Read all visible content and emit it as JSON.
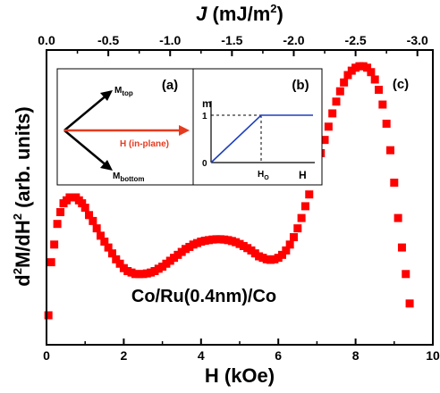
{
  "chart_data": {
    "type": "scatter",
    "ylabel_main": "d",
    "ylabel_sup1": "2",
    "ylabel_mid": "M/dH",
    "ylabel_sup2": "2",
    "ylabel_tail": " (arb. units)",
    "xlabel": "H (kOe)",
    "top_xlabel_var": "J",
    "top_xlabel_unit": " (mJ/m",
    "top_xlabel_sup": "2",
    "top_xlabel_close": ")",
    "xlim": [
      0,
      10
    ],
    "x_ticks": [
      "0",
      "2",
      "4",
      "6",
      "8",
      "10"
    ],
    "top_ticks": [
      "0.0",
      "-0.5",
      "-1.0",
      "-1.5",
      "-2.0",
      "-2.5",
      "-3.0"
    ],
    "top_tick_H": [
      0,
      1.6,
      3.2,
      4.8,
      6.4,
      8.0,
      9.6
    ],
    "ylim": [
      0,
      1
    ],
    "annotation": "Co/Ru(0.4nm)/Co",
    "marker_color": "#ff0000",
    "series": [
      {
        "x": [
          0.05,
          0.12,
          0.2,
          0.28,
          0.36,
          0.44,
          0.52,
          0.6,
          0.68,
          0.76,
          0.84,
          0.92,
          1.0,
          1.1,
          1.2,
          1.3,
          1.4,
          1.5,
          1.6,
          1.7,
          1.8,
          1.9,
          2.0,
          2.1,
          2.2,
          2.3,
          2.4,
          2.5,
          2.6,
          2.7,
          2.8,
          2.9,
          3.0,
          3.1,
          3.2,
          3.3,
          3.4,
          3.5,
          3.6,
          3.7,
          3.8,
          3.9,
          4.0,
          4.1,
          4.2,
          4.3,
          4.4,
          4.5,
          4.6,
          4.7,
          4.8,
          4.9,
          5.0,
          5.1,
          5.2,
          5.3,
          5.4,
          5.5,
          5.6,
          5.7,
          5.8,
          5.9,
          6.0,
          6.1,
          6.2,
          6.3,
          6.4,
          6.5,
          6.6,
          6.7,
          6.8,
          6.9,
          7.0,
          7.1,
          7.2,
          7.3,
          7.4,
          7.5,
          7.6,
          7.7,
          7.8,
          7.9,
          8.0,
          8.1,
          8.2,
          8.3,
          8.4,
          8.5,
          8.6,
          8.7,
          8.8,
          8.9,
          9.0,
          9.1,
          9.2,
          9.3,
          9.4
        ],
        "y": [
          0.1,
          0.28,
          0.34,
          0.41,
          0.45,
          0.48,
          0.49,
          0.5,
          0.5,
          0.5,
          0.49,
          0.48,
          0.465,
          0.44,
          0.42,
          0.395,
          0.37,
          0.35,
          0.33,
          0.31,
          0.29,
          0.275,
          0.26,
          0.25,
          0.245,
          0.24,
          0.24,
          0.24,
          0.242,
          0.245,
          0.25,
          0.258,
          0.265,
          0.275,
          0.285,
          0.295,
          0.305,
          0.315,
          0.325,
          0.332,
          0.34,
          0.345,
          0.35,
          0.353,
          0.355,
          0.357,
          0.358,
          0.358,
          0.357,
          0.355,
          0.352,
          0.348,
          0.342,
          0.335,
          0.328,
          0.32,
          0.31,
          0.3,
          0.295,
          0.29,
          0.288,
          0.29,
          0.295,
          0.305,
          0.32,
          0.34,
          0.365,
          0.395,
          0.43,
          0.47,
          0.51,
          0.555,
          0.6,
          0.65,
          0.695,
          0.74,
          0.785,
          0.825,
          0.86,
          0.89,
          0.915,
          0.93,
          0.94,
          0.945,
          0.945,
          0.94,
          0.925,
          0.9,
          0.865,
          0.815,
          0.75,
          0.66,
          0.55,
          0.43,
          0.33,
          0.24,
          0.14
        ]
      }
    ],
    "insets": {
      "a": {
        "label": "(a)",
        "m_top_main": "M",
        "m_top_sub": "top",
        "m_bottom_main": "M",
        "m_bottom_sub": "bottom",
        "h_label": "H (in-plane)"
      },
      "b": {
        "label": "(b)",
        "y_var": "m",
        "y_one": "1",
        "y_zero": "0",
        "x_var": "H",
        "hc_main": "H",
        "hc_sub": "O"
      }
    },
    "panel_c_label": "(c)"
  }
}
